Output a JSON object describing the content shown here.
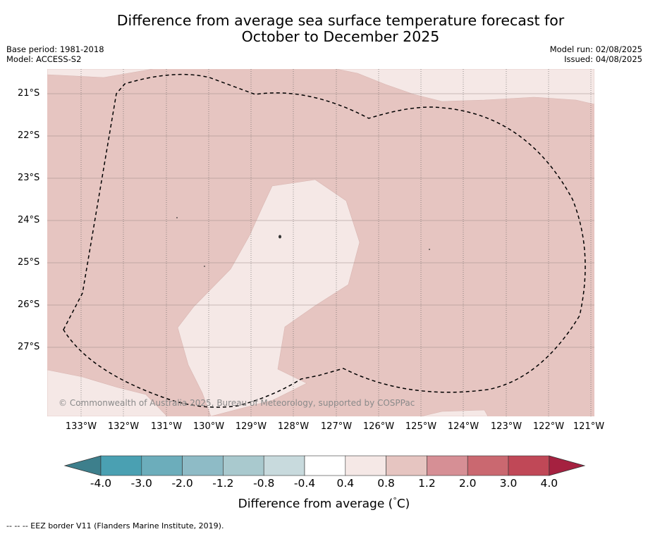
{
  "title_line1": "Difference from average sea surface temperature forecast for",
  "title_line2": "October to December 2025",
  "meta_left": {
    "base_period": "Base period: 1981-2018",
    "model": "Model: ACCESS-S2"
  },
  "meta_right": {
    "model_run": "Model run: 02/08/2025",
    "issued": "Issued: 04/08/2025"
  },
  "lat_labels": [
    "21°S",
    "22°S",
    "23°S",
    "24°S",
    "25°S",
    "26°S",
    "27°S"
  ],
  "lon_labels": [
    "133°W",
    "132°W",
    "131°W",
    "130°W",
    "129°W",
    "128°W",
    "127°W",
    "126°W",
    "125°W",
    "124°W",
    "123°W",
    "122°W",
    "121°W"
  ],
  "copyright": "© Commonwealth of Australia 2025, Bureau of Meteorology, supported by COSPPac",
  "colorbar": {
    "ticks": [
      "-4.0",
      "-3.0",
      "-2.0",
      "-1.2",
      "-0.8",
      "-0.4",
      "0.4",
      "0.8",
      "1.2",
      "2.0",
      "3.0",
      "4.0"
    ],
    "colors": [
      "#3d7f8c",
      "#4aa0b2",
      "#6cadbb",
      "#8ebbc6",
      "#a9c9ce",
      "#c8dadd",
      "#ffffff",
      "#f5e8e6",
      "#e6c5c1",
      "#d68f95",
      "#ca6870",
      "#c04857",
      "#a52140"
    ],
    "label": "Difference from average (",
    "unit_symbol": "°",
    "unit": "C)"
  },
  "map_colors": {
    "band_04_08": "#f5e8e6",
    "band_08_12": "#e6c5c1"
  },
  "footnote": "--  --  -- EEZ border V11 (Flanders Marine Institute, 2019)."
}
